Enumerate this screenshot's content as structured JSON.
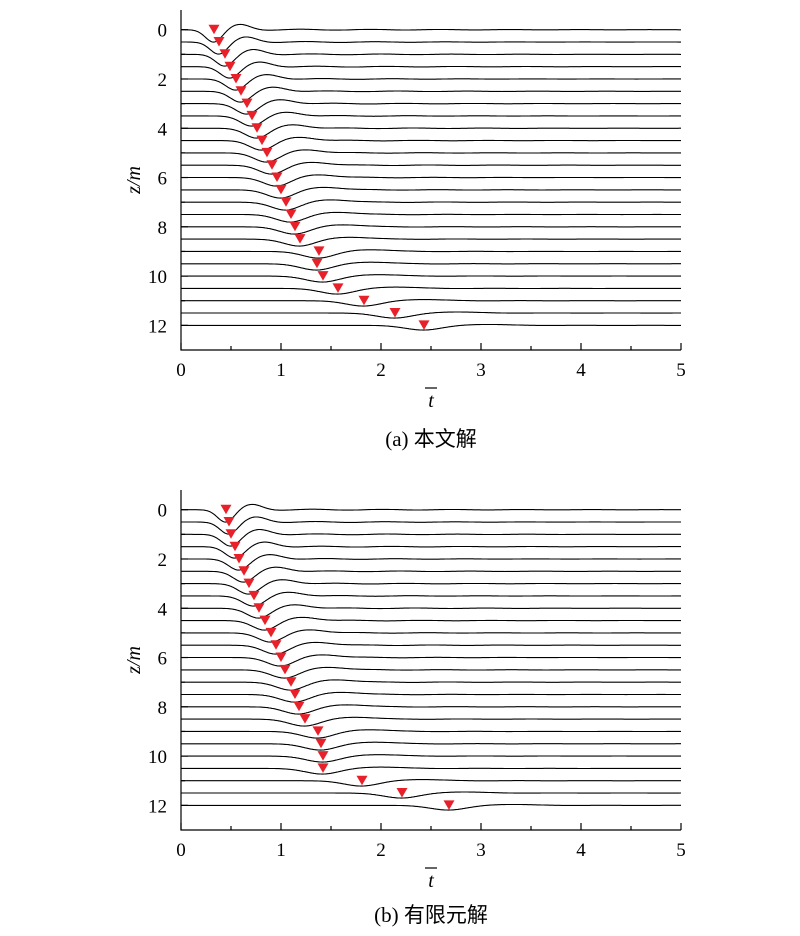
{
  "colors": {
    "marker": "#e8202a",
    "trace": "#000000"
  },
  "chart_data": [
    {
      "type": "line",
      "caption": "(a) 本文解",
      "xlabel": "t",
      "ylabel": "z/m",
      "xlim": [
        0,
        5
      ],
      "ylim": [
        13,
        -0.8
      ],
      "xticks": [
        "0",
        "1",
        "2",
        "3",
        "4",
        "5"
      ],
      "yticks": [
        "0",
        "2",
        "4",
        "6",
        "8",
        "10",
        "12"
      ],
      "grid": false,
      "depths": [
        0,
        0.5,
        1,
        1.5,
        2,
        2.5,
        3,
        3.5,
        4,
        4.5,
        5,
        5.5,
        6,
        6.5,
        7,
        7.5,
        8,
        8.5,
        9,
        9.5,
        10,
        10.5,
        11,
        11.5,
        12
      ],
      "arrival_markers": [
        {
          "z": 0,
          "t": 0.33
        },
        {
          "z": 0.5,
          "t": 0.38
        },
        {
          "z": 1,
          "t": 0.44
        },
        {
          "z": 1.5,
          "t": 0.49
        },
        {
          "z": 2,
          "t": 0.55
        },
        {
          "z": 2.5,
          "t": 0.6
        },
        {
          "z": 3,
          "t": 0.66
        },
        {
          "z": 3.5,
          "t": 0.71
        },
        {
          "z": 4,
          "t": 0.76
        },
        {
          "z": 4.5,
          "t": 0.81
        },
        {
          "z": 5,
          "t": 0.86
        },
        {
          "z": 5.5,
          "t": 0.91
        },
        {
          "z": 6,
          "t": 0.96
        },
        {
          "z": 6.5,
          "t": 1.0
        },
        {
          "z": 7,
          "t": 1.05
        },
        {
          "z": 7.5,
          "t": 1.1
        },
        {
          "z": 8,
          "t": 1.14
        },
        {
          "z": 8.5,
          "t": 1.19
        },
        {
          "z": 9,
          "t": 1.38
        },
        {
          "z": 9.5,
          "t": 1.36
        },
        {
          "z": 10,
          "t": 1.42
        },
        {
          "z": 10.5,
          "t": 1.57
        },
        {
          "z": 11,
          "t": 1.83
        },
        {
          "z": 11.5,
          "t": 2.14
        },
        {
          "z": 12,
          "t": 2.43
        }
      ]
    },
    {
      "type": "line",
      "caption": "(b) 有限元解",
      "xlabel": "t",
      "ylabel": "z/m",
      "xlim": [
        0,
        5
      ],
      "ylim": [
        13,
        -0.8
      ],
      "xticks": [
        "0",
        "1",
        "2",
        "3",
        "4",
        "5"
      ],
      "yticks": [
        "0",
        "2",
        "4",
        "6",
        "8",
        "10",
        "12"
      ],
      "grid": false,
      "depths": [
        0,
        0.5,
        1,
        1.5,
        2,
        2.5,
        3,
        3.5,
        4,
        4.5,
        5,
        5.5,
        6,
        6.5,
        7,
        7.5,
        8,
        8.5,
        9,
        9.5,
        10,
        10.5,
        11,
        11.5,
        12
      ],
      "arrival_markers": [
        {
          "z": 0,
          "t": 0.45
        },
        {
          "z": 0.5,
          "t": 0.48
        },
        {
          "z": 1,
          "t": 0.5
        },
        {
          "z": 1.5,
          "t": 0.54
        },
        {
          "z": 2,
          "t": 0.58
        },
        {
          "z": 2.5,
          "t": 0.63
        },
        {
          "z": 3,
          "t": 0.68
        },
        {
          "z": 3.5,
          "t": 0.73
        },
        {
          "z": 4,
          "t": 0.78
        },
        {
          "z": 4.5,
          "t": 0.84
        },
        {
          "z": 5,
          "t": 0.9
        },
        {
          "z": 5.5,
          "t": 0.95
        },
        {
          "z": 6,
          "t": 1.0
        },
        {
          "z": 6.5,
          "t": 1.04
        },
        {
          "z": 7,
          "t": 1.1
        },
        {
          "z": 7.5,
          "t": 1.14
        },
        {
          "z": 8,
          "t": 1.18
        },
        {
          "z": 8.5,
          "t": 1.24
        },
        {
          "z": 9,
          "t": 1.37
        },
        {
          "z": 9.5,
          "t": 1.4
        },
        {
          "z": 10,
          "t": 1.42
        },
        {
          "z": 10.5,
          "t": 1.42
        },
        {
          "z": 11,
          "t": 1.81
        },
        {
          "z": 11.5,
          "t": 2.21
        },
        {
          "z": 12,
          "t": 2.68
        }
      ]
    }
  ]
}
